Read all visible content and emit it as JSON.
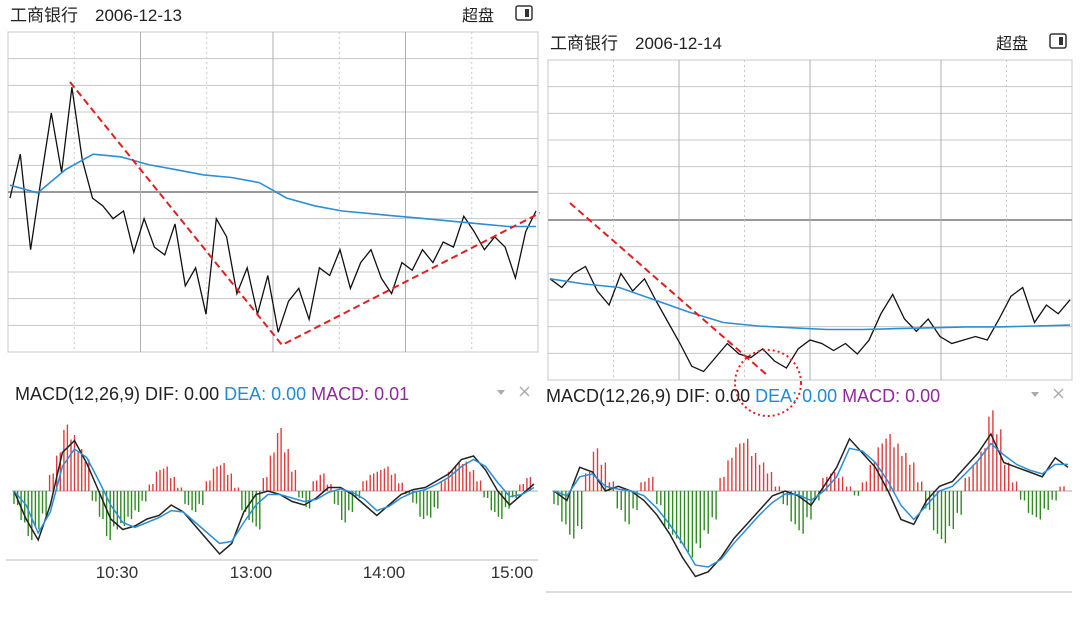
{
  "panels": [
    {
      "id": "left",
      "header": {
        "stock": "工商银行",
        "date": "2006-12-13",
        "button": "超盘"
      },
      "macd_labels": {
        "name": "MACD(12,26,9)",
        "dif": "DIF: 0.00",
        "dea": "DEA: 0.00",
        "macd": "MACD: 0.01"
      },
      "time_labels": [
        "10:30",
        "13:00",
        "14:00",
        "15:00"
      ]
    },
    {
      "id": "right",
      "header": {
        "stock": "工商银行",
        "date": "2006-12-14",
        "button": "超盘"
      },
      "macd_labels": {
        "name": "MACD(12,26,9)",
        "dif": "DIF: 0.00",
        "dea": "DEA: 0.00",
        "macd": "MACD: 0.00"
      },
      "time_labels": []
    }
  ],
  "colors": {
    "price": "#111111",
    "avg": "#2b8fd6",
    "trend": "#e02020",
    "macd_pos": "#e23b3b",
    "macd_neg": "#2e8b22",
    "grid": "#c8c8c8",
    "dif_label": "#222222",
    "dea_label": "#1f8ad6",
    "macd_label": "#8e2a9c"
  },
  "icons": [
    "window-toggle-icon",
    "dropdown-icon",
    "close-icon"
  ],
  "chart_data": [
    {
      "type": "line",
      "title": "工商银行 2006-12-13",
      "series": [
        {
          "values": [
            0.55,
            0.72,
            0.35,
            0.62,
            0.88,
            0.65,
            0.98,
            0.7,
            0.55,
            0.52,
            0.47,
            0.5,
            0.34,
            0.47,
            0.36,
            0.33,
            0.45,
            0.21,
            0.28,
            0.1,
            0.47,
            0.4,
            0.18,
            0.28,
            0.1,
            0.25,
            0.03,
            0.15,
            0.2,
            0.08,
            0.28,
            0.25,
            0.35,
            0.2,
            0.3,
            0.35,
            0.24,
            0.18,
            0.3,
            0.27,
            0.35,
            0.3,
            0.38,
            0.36,
            0.48,
            0.42,
            0.35,
            0.4,
            0.36,
            0.24,
            0.42,
            0.5
          ]
        },
        {
          "values": [
            0.6,
            0.57,
            0.66,
            0.72,
            0.71,
            0.68,
            0.66,
            0.64,
            0.63,
            0.61,
            0.55,
            0.52,
            0.5,
            0.49,
            0.48,
            0.47,
            0.46,
            0.45,
            0.44,
            0.44
          ]
        }
      ]
    },
    {
      "type": "line",
      "title": "工商银行 2006-12-14",
      "series": [
        {
          "values": [
            0.55,
            0.5,
            0.58,
            0.62,
            0.48,
            0.4,
            0.58,
            0.48,
            0.55,
            0.42,
            0.3,
            0.18,
            0.05,
            0.02,
            0.1,
            0.18,
            0.12,
            0.1,
            0.15,
            0.08,
            0.04,
            0.15,
            0.2,
            0.18,
            0.14,
            0.18,
            0.12,
            0.2,
            0.35,
            0.46,
            0.32,
            0.25,
            0.32,
            0.22,
            0.18,
            0.2,
            0.22,
            0.2,
            0.32,
            0.45,
            0.5,
            0.3,
            0.4,
            0.35,
            0.43
          ]
        },
        {
          "values": [
            0.55,
            0.52,
            0.5,
            0.43,
            0.36,
            0.3,
            0.28,
            0.27,
            0.26,
            0.26,
            0.265,
            0.27,
            0.275,
            0.275,
            0.28,
            0.285
          ]
        }
      ]
    },
    {
      "type": "bar",
      "title": "MACD(12,26,9)",
      "values": [
        -0.2,
        -0.45,
        -0.7,
        -0.55,
        -0.35,
        0.25,
        0.55,
        0.95,
        0.8,
        0.6,
        0.45,
        -0.15,
        -0.4,
        -0.7,
        -0.55,
        -0.5,
        -0.4,
        -0.3,
        -0.15,
        0.1,
        0.3,
        0.35,
        0.2,
        0.05,
        -0.2,
        -0.3,
        -0.2,
        0.15,
        0.35,
        0.4,
        0.25,
        0.05,
        -0.3,
        -0.45,
        -0.55,
        0.2,
        0.55,
        0.9,
        0.6,
        0.3,
        -0.1,
        -0.25,
        0.15,
        0.25,
        0.1,
        -0.2,
        -0.45,
        -0.3,
        -0.1,
        0.15,
        0.25,
        0.3,
        0.35,
        0.25,
        0.12,
        -0.05,
        -0.18,
        -0.4,
        -0.38,
        -0.25,
        0.15,
        0.3,
        0.4,
        0.42,
        0.3,
        0.15,
        -0.1,
        -0.3,
        -0.4,
        -0.25,
        -0.1,
        0.1,
        0.2
      ],
      "series": [
        {
          "name": "DIF",
          "values": [
            0.0,
            -0.4,
            -0.7,
            -0.2,
            0.55,
            0.72,
            0.4,
            0.0,
            -0.4,
            -0.55,
            -0.5,
            -0.4,
            -0.35,
            -0.2,
            -0.3,
            -0.5,
            -0.7,
            -0.9,
            -0.75,
            -0.3,
            -0.05,
            0.0,
            -0.05,
            -0.15,
            -0.2,
            -0.1,
            0.05,
            0.05,
            -0.05,
            -0.2,
            -0.35,
            -0.2,
            -0.05,
            0.02,
            0.05,
            0.15,
            0.25,
            0.45,
            0.5,
            0.3,
            0.0,
            -0.2,
            -0.05,
            0.1
          ]
        },
        {
          "name": "DEA",
          "values": [
            0.0,
            -0.2,
            -0.6,
            -0.3,
            0.35,
            0.6,
            0.48,
            0.15,
            -0.2,
            -0.45,
            -0.52,
            -0.45,
            -0.38,
            -0.28,
            -0.3,
            -0.45,
            -0.6,
            -0.75,
            -0.72,
            -0.45,
            -0.2,
            -0.05,
            -0.05,
            -0.1,
            -0.15,
            -0.12,
            -0.02,
            0.03,
            -0.02,
            -0.12,
            -0.28,
            -0.22,
            -0.1,
            -0.02,
            0.02,
            0.1,
            0.2,
            0.35,
            0.45,
            0.35,
            0.12,
            -0.08,
            -0.05,
            0.05
          ]
        }
      ]
    },
    {
      "type": "bar",
      "title": "MACD(12,26,9)",
      "values": [
        -0.15,
        -0.35,
        -0.5,
        -0.4,
        0.2,
        0.45,
        0.3,
        0.1,
        -0.2,
        -0.35,
        -0.2,
        0.1,
        0.15,
        -0.15,
        -0.4,
        -0.5,
        -0.6,
        -0.7,
        -0.6,
        -0.45,
        -0.3,
        0.15,
        0.35,
        0.5,
        0.55,
        0.4,
        0.3,
        0.2,
        0.05,
        -0.15,
        -0.35,
        -0.45,
        -0.3,
        -0.1,
        0.15,
        0.2,
        0.15,
        0.05,
        -0.05,
        0.1,
        0.3,
        0.5,
        0.6,
        0.5,
        0.4,
        0.3,
        0.1,
        -0.2,
        -0.45,
        -0.55,
        -0.4,
        -0.25,
        0.15,
        0.3,
        0.45,
        0.85,
        0.65,
        0.3,
        0.1,
        -0.1,
        -0.25,
        -0.3,
        -0.2,
        -0.1,
        0.05
      ],
      "series": [
        {
          "name": "DIF",
          "values": [
            0.0,
            -0.1,
            0.25,
            0.2,
            0.0,
            0.05,
            0.0,
            -0.1,
            -0.25,
            -0.45,
            -0.7,
            -0.9,
            -0.85,
            -0.7,
            -0.5,
            -0.35,
            -0.2,
            -0.05,
            0.0,
            -0.05,
            -0.15,
            0.05,
            0.25,
            0.55,
            0.4,
            0.25,
            0.0,
            -0.3,
            -0.35,
            -0.1,
            0.05,
            0.1,
            0.25,
            0.4,
            0.6,
            0.3,
            0.25,
            0.2,
            0.15,
            0.35,
            0.25
          ]
        },
        {
          "name": "DEA",
          "values": [
            0.0,
            -0.05,
            0.15,
            0.18,
            0.05,
            0.02,
            0.0,
            -0.05,
            -0.18,
            -0.35,
            -0.55,
            -0.78,
            -0.8,
            -0.72,
            -0.55,
            -0.4,
            -0.25,
            -0.12,
            -0.03,
            -0.04,
            -0.1,
            0.0,
            0.15,
            0.45,
            0.42,
            0.3,
            0.1,
            -0.15,
            -0.3,
            -0.15,
            0.0,
            0.05,
            0.18,
            0.32,
            0.5,
            0.38,
            0.28,
            0.22,
            0.18,
            0.28,
            0.28
          ]
        }
      ]
    }
  ]
}
